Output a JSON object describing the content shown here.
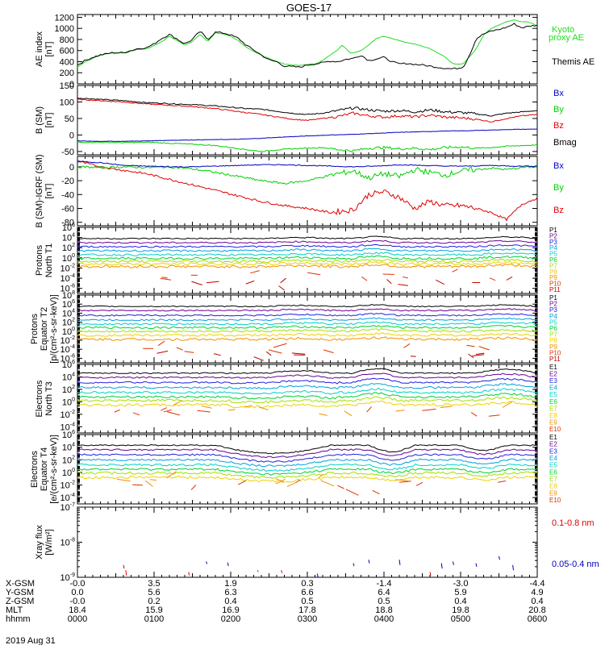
{
  "title": "GOES-17",
  "date": "2019 Aug 31",
  "colors": {
    "black": "#000000",
    "red": "#e00000",
    "green": "#00d000",
    "blue": "#0000c0",
    "kyoto": "#22dd22"
  },
  "chart_data": [
    {
      "type": "line",
      "name": "ae",
      "ylabel": "AE index [nT]",
      "ylim": [
        0,
        1250
      ],
      "yticks": [
        0,
        200,
        400,
        600,
        800,
        1000,
        1200
      ],
      "ticklabels": [
        "0",
        "200",
        "400",
        "600",
        "800",
        "1000",
        "1200"
      ],
      "series": [
        {
          "name": "Kyoto proxy AE",
          "color": "#22dd22",
          "x": [
            0,
            10,
            20,
            30,
            45,
            60,
            70,
            80,
            90,
            100,
            110,
            120,
            130,
            140,
            150,
            160,
            170,
            180,
            190,
            200,
            210,
            220,
            230,
            240,
            250,
            260,
            270,
            280,
            290,
            300,
            310,
            320,
            330,
            340,
            345,
            350,
            355,
            360,
            370,
            380,
            390,
            400,
            410,
            420,
            430,
            440,
            450,
            460,
            470,
            480,
            490,
            500,
            505,
            510,
            520,
            530,
            540,
            550,
            560,
            570,
            580,
            590,
            600
          ],
          "y": [
            300,
            400,
            460,
            520,
            560,
            560,
            600,
            620,
            630,
            690,
            760,
            860,
            780,
            700,
            760,
            900,
            760,
            920,
            900,
            860,
            780,
            660,
            580,
            520,
            460,
            400,
            360,
            340,
            330,
            350,
            360,
            420,
            520,
            620,
            700,
            640,
            560,
            560,
            600,
            700,
            820,
            860,
            820,
            780,
            740,
            720,
            680,
            640,
            560,
            480,
            360,
            350,
            380,
            460,
            620,
            880,
            1000,
            1060,
            1120,
            1150,
            1120,
            1110,
            1050
          ]
        },
        {
          "name": "Themis AE",
          "color": "#000000",
          "x": [
            0,
            10,
            20,
            30,
            45,
            60,
            70,
            80,
            90,
            100,
            110,
            120,
            130,
            140,
            150,
            160,
            170,
            180,
            190,
            200,
            210,
            220,
            230,
            240,
            250,
            260,
            270,
            280,
            290,
            300,
            310,
            320,
            330,
            340,
            350,
            360,
            370,
            380,
            390,
            400,
            410,
            420,
            430,
            440,
            450,
            460,
            470,
            480,
            490,
            500,
            505,
            510,
            515,
            520,
            530,
            540,
            550,
            560,
            570,
            580,
            590,
            600
          ],
          "y": [
            340,
            420,
            480,
            520,
            560,
            560,
            600,
            640,
            650,
            720,
            820,
            890,
            810,
            720,
            800,
            950,
            800,
            930,
            920,
            880,
            820,
            700,
            610,
            520,
            430,
            400,
            320,
            310,
            300,
            340,
            360,
            380,
            410,
            400,
            440,
            460,
            520,
            420,
            450,
            480,
            400,
            360,
            370,
            350,
            340,
            320,
            300,
            280,
            270,
            290,
            330,
            480,
            620,
            810,
            900,
            950,
            980,
            1020,
            1080,
            1010,
            1040,
            1060
          ]
        }
      ]
    },
    {
      "type": "line",
      "name": "bsm",
      "ylabel": "B (SM) [nT]",
      "ylim": [
        -60,
        150
      ],
      "yticks": [
        -50,
        0,
        50,
        100,
        150
      ],
      "ticklabels": [
        "-50",
        "0",
        "50",
        "100",
        "150"
      ],
      "series": [
        {
          "name": "Bx",
          "color": "#0000c0",
          "x": [
            0,
            30,
            60,
            90,
            120,
            150,
            180,
            210,
            240,
            270,
            300,
            330,
            360,
            390,
            420,
            450,
            480,
            510,
            540,
            570,
            600
          ],
          "y": [
            -18,
            -19,
            -19,
            -18,
            -16,
            -15,
            -14,
            -13,
            -10,
            -6,
            -3,
            0,
            2,
            5,
            8,
            10,
            12,
            13,
            15,
            17,
            18
          ]
        },
        {
          "name": "By",
          "color": "#00d000",
          "x": [
            0,
            30,
            60,
            90,
            120,
            150,
            180,
            200,
            220,
            240,
            260,
            280,
            300,
            320,
            340,
            360,
            380,
            400,
            420,
            440,
            460,
            480,
            500,
            520,
            540,
            560,
            580,
            600
          ],
          "y": [
            -22,
            -22,
            -23,
            -22,
            -25,
            -28,
            -32,
            -38,
            -44,
            -50,
            -45,
            -42,
            -40,
            -38,
            -44,
            -48,
            -40,
            -38,
            -42,
            -40,
            -44,
            -38,
            -36,
            -40,
            -38,
            -34,
            -32,
            -30
          ]
        },
        {
          "name": "Bz",
          "color": "#e00000",
          "x": [
            0,
            30,
            60,
            90,
            120,
            150,
            180,
            200,
            220,
            240,
            260,
            280,
            300,
            320,
            340,
            360,
            380,
            400,
            420,
            440,
            460,
            480,
            500,
            520,
            540,
            560,
            580,
            600
          ],
          "y": [
            108,
            104,
            100,
            94,
            90,
            86,
            80,
            74,
            68,
            62,
            55,
            48,
            44,
            50,
            56,
            66,
            58,
            54,
            58,
            55,
            60,
            54,
            52,
            48,
            40,
            50,
            58,
            62
          ]
        },
        {
          "name": "Bmag",
          "color": "#000000",
          "x": [
            0,
            30,
            60,
            90,
            120,
            150,
            180,
            200,
            220,
            240,
            260,
            280,
            300,
            320,
            340,
            360,
            380,
            400,
            420,
            440,
            460,
            480,
            500,
            520,
            540,
            560,
            580,
            600
          ],
          "y": [
            112,
            108,
            104,
            98,
            95,
            92,
            88,
            84,
            80,
            78,
            72,
            66,
            62,
            66,
            74,
            82,
            76,
            72,
            74,
            70,
            76,
            70,
            68,
            64,
            58,
            66,
            70,
            74
          ]
        }
      ]
    },
    {
      "type": "line",
      "name": "bigrf",
      "ylabel": "B (SM)-IGRF (SM) [nT]",
      "ylim": [
        -85,
        15
      ],
      "yticks": [
        -80,
        -60,
        -40,
        -20,
        0
      ],
      "ticklabels": [
        "-80",
        "-60",
        "-40",
        "-20",
        "0"
      ],
      "series": [
        {
          "name": "Bx",
          "color": "#0000c0",
          "x": [
            0,
            30,
            60,
            90,
            120,
            150,
            180,
            210,
            240,
            270,
            300,
            330,
            360,
            390,
            420,
            450,
            480,
            510,
            540,
            570,
            600
          ],
          "y": [
            8,
            6,
            2,
            1,
            0,
            0,
            1,
            2,
            3,
            3,
            2,
            1,
            0,
            1,
            3,
            2,
            1,
            1,
            2,
            1,
            1
          ]
        },
        {
          "name": "By",
          "color": "#00d000",
          "x": [
            0,
            30,
            60,
            90,
            120,
            150,
            180,
            210,
            240,
            270,
            300,
            330,
            360,
            380,
            400,
            420,
            440,
            460,
            480,
            500,
            520,
            540,
            560,
            580,
            600
          ],
          "y": [
            0,
            -1,
            0,
            -1,
            0,
            -3,
            -8,
            -14,
            -20,
            -24,
            -20,
            -12,
            -6,
            -16,
            -10,
            -14,
            -4,
            -8,
            -12,
            -6,
            -4,
            -2,
            -4,
            -1,
            0
          ]
        },
        {
          "name": "Bz",
          "color": "#e00000",
          "x": [
            0,
            30,
            60,
            90,
            120,
            150,
            180,
            210,
            240,
            270,
            300,
            330,
            360,
            380,
            400,
            420,
            440,
            460,
            480,
            500,
            520,
            540,
            560,
            580,
            600
          ],
          "y": [
            8,
            0,
            -5,
            -10,
            -18,
            -26,
            -34,
            -42,
            -50,
            -56,
            -60,
            -66,
            -62,
            -40,
            -36,
            -44,
            -60,
            -50,
            -56,
            -56,
            -60,
            -66,
            -76,
            -54,
            -45
          ]
        }
      ]
    },
    {
      "type": "line",
      "name": "pnorth",
      "log": true,
      "ylabel": "Protons North T1",
      "ylim": [
        -7,
        6
      ],
      "yticks": [
        -6,
        -4,
        -2,
        0,
        2,
        4,
        6
      ],
      "series_labels": [
        "P1",
        "P2",
        "P3",
        "P4",
        "P5",
        "P6",
        "P7",
        "P8",
        "P9",
        "P10",
        "P11"
      ]
    },
    {
      "type": "line",
      "name": "pequator",
      "log": true,
      "ylabel": "Protons Equator T2 [p/(cm²-s-sr-keV)]",
      "ylim": [
        -7,
        8
      ],
      "yticks": [
        -6,
        -4,
        -2,
        0,
        2,
        4,
        6,
        8
      ],
      "series_labels": [
        "P1",
        "P2",
        "P3",
        "P4",
        "P5",
        "P6",
        "P7",
        "P8",
        "P9",
        "P10",
        "P11"
      ]
    },
    {
      "type": "line",
      "name": "enorth",
      "log": true,
      "ylabel": "Electrons North T3",
      "ylim": [
        -5,
        6
      ],
      "yticks": [
        -4,
        -2,
        0,
        2,
        4,
        6
      ],
      "series_labels": [
        "E1",
        "E2",
        "E3",
        "E4",
        "E5",
        "E6",
        "E7",
        "E8",
        "E9",
        "E10"
      ]
    },
    {
      "type": "line",
      "name": "eequator",
      "log": true,
      "ylabel": "Electrons Equator T4 [e/(cm²-s-sr-keV)]",
      "ylim": [
        -5,
        6
      ],
      "yticks": [
        -4,
        -2,
        0,
        2,
        4,
        6
      ],
      "series_labels": [
        "E1",
        "E2",
        "E3",
        "E4",
        "E5",
        "E6",
        "E7",
        "E8",
        "E9",
        "E10"
      ]
    },
    {
      "type": "line",
      "name": "xray",
      "log": true,
      "ylabel": "Xray flux [W/m²]",
      "ylim": [
        -9,
        -7
      ],
      "yticks": [
        -9,
        -8,
        -7
      ],
      "series": [
        {
          "name": "0.1-0.8 nm",
          "color": "#e00000"
        },
        {
          "name": "0.05-0.4 nm",
          "color": "#0000c0"
        }
      ]
    }
  ],
  "colorscale": [
    "#000000",
    "#6a0090",
    "#2020e0",
    "#00a0e0",
    "#00d0c8",
    "#00d030",
    "#a0e000",
    "#f0d000",
    "#f09000",
    "#e03000",
    "#c00000"
  ],
  "axis": {
    "x_ticks_min": [
      0,
      100,
      200,
      300,
      400,
      500,
      600
    ],
    "rows": [
      {
        "label": "X-GSM",
        "values": [
          "-0.0",
          "3.5",
          "1.9",
          "0.3",
          "-1.4",
          "-3.0",
          "-4.4"
        ]
      },
      {
        "label": "Y-GSM",
        "values": [
          "0.0",
          "5.6",
          "6.3",
          "6.6",
          "6.4",
          "5.9",
          "4.9"
        ]
      },
      {
        "label": "Z-GSM",
        "values": [
          "-0.0",
          "0.2",
          "0.4",
          "0.5",
          "0.5",
          "0.4",
          "0.4"
        ]
      },
      {
        "label": "MLT",
        "values": [
          "18.4",
          "15.9",
          "16.9",
          "17.8",
          "18.8",
          "19.8",
          "20.8"
        ]
      },
      {
        "label": "hhmm",
        "values": [
          "0000",
          "0100",
          "0200",
          "0300",
          "0400",
          "0500",
          "0600"
        ]
      }
    ]
  }
}
